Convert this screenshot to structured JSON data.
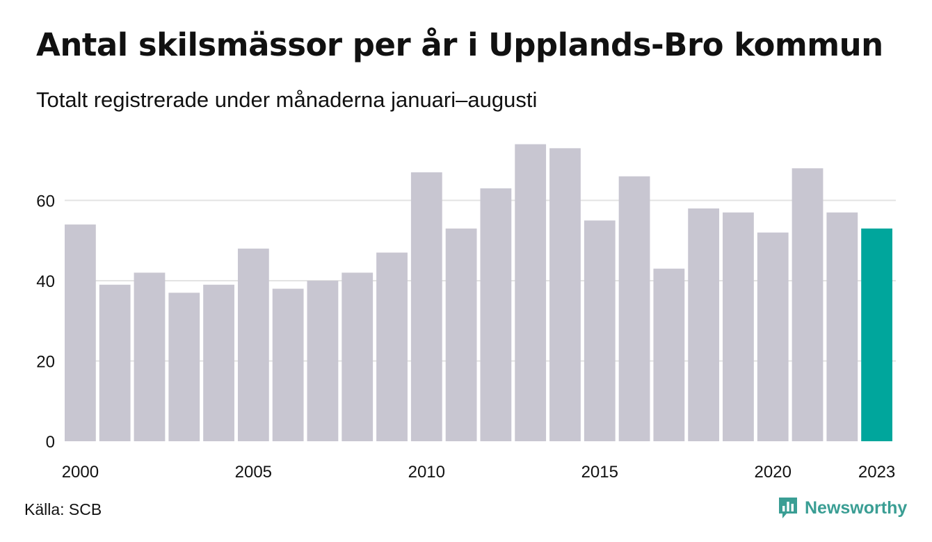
{
  "header": {
    "title": "Antal skilsmässor per år i Upplands-Bro kommun",
    "subtitle": "Totalt registrerade under månaderna januari–augusti"
  },
  "footer": {
    "source": "Källa: SCB",
    "brand": "Newsworthy"
  },
  "colors": {
    "bar": "#c8c6d1",
    "highlight": "#00a69c",
    "grid": "#e3e3e3",
    "brand": "#3a9e94"
  },
  "chart_data": {
    "type": "bar",
    "categories": [
      "2000",
      "2001",
      "2002",
      "2003",
      "2004",
      "2005",
      "2006",
      "2007",
      "2008",
      "2009",
      "2010",
      "2011",
      "2012",
      "2013",
      "2014",
      "2015",
      "2016",
      "2017",
      "2018",
      "2019",
      "2020",
      "2021",
      "2022",
      "2023"
    ],
    "values": [
      54,
      39,
      42,
      37,
      39,
      48,
      38,
      40,
      42,
      47,
      67,
      53,
      63,
      74,
      73,
      55,
      66,
      43,
      58,
      57,
      52,
      68,
      57,
      53
    ],
    "highlight_category": "2023",
    "x_tick_labels": [
      "2000",
      "2005",
      "2010",
      "2015",
      "2020",
      "2023"
    ],
    "y_ticks": [
      0,
      20,
      40,
      60
    ],
    "ylim": [
      0,
      76
    ],
    "grid": true,
    "xlabel": "",
    "ylabel": ""
  }
}
